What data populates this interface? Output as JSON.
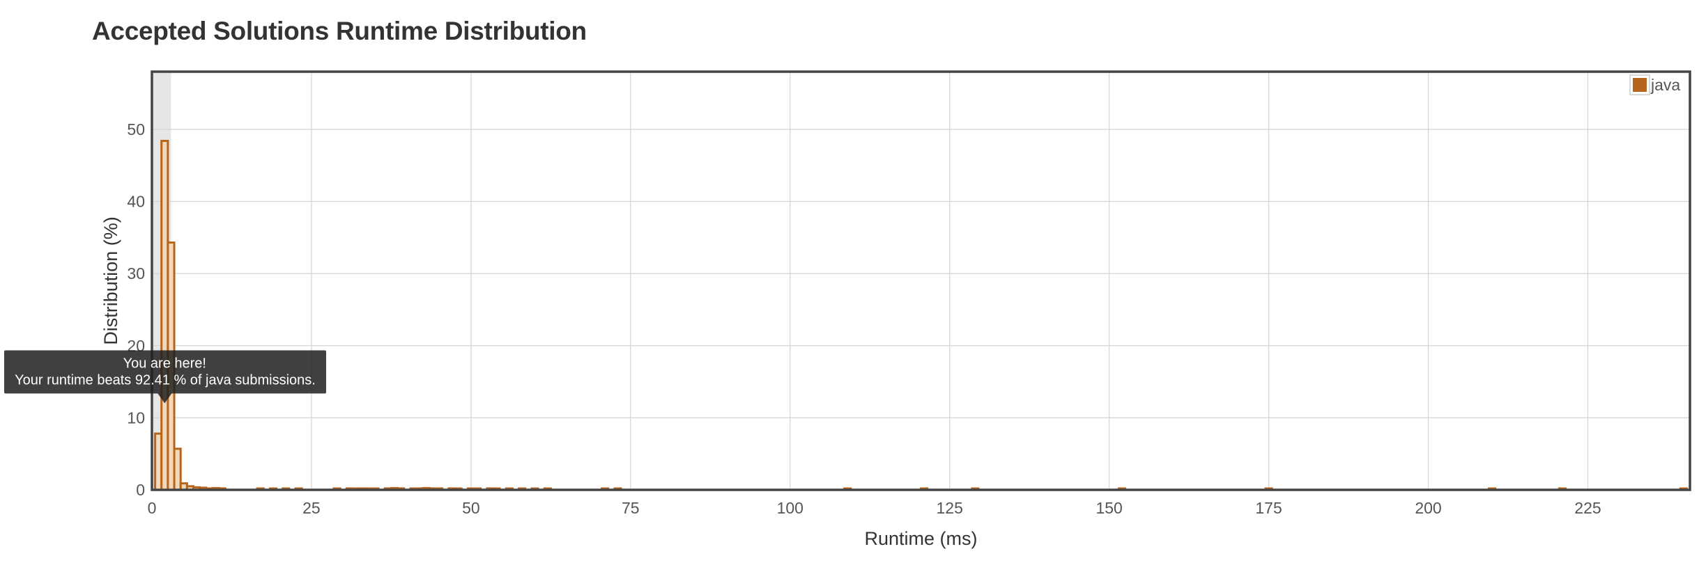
{
  "page": {
    "title": "Accepted Solutions Runtime Distribution"
  },
  "chart_data": {
    "type": "bar",
    "title": "Accepted Solutions Runtime Distribution",
    "xlabel": "Runtime (ms)",
    "ylabel": "Distribution (%)",
    "xlim": [
      0,
      241
    ],
    "ylim": [
      0,
      58
    ],
    "x_ticks": [
      0,
      25,
      50,
      75,
      100,
      125,
      150,
      175,
      200,
      225
    ],
    "y_ticks": [
      0,
      10,
      20,
      30,
      40,
      50
    ],
    "grid": true,
    "legend_position": "top-right",
    "bin_width_ms": 1,
    "series": [
      {
        "name": "java",
        "color": "#b5651d",
        "fill": "#f3d9b8",
        "x": [
          1,
          2,
          3,
          4,
          5,
          6,
          7,
          8,
          9,
          10,
          11,
          17,
          19,
          21,
          23,
          29,
          31,
          32,
          33,
          34,
          35,
          37,
          38,
          39,
          41,
          42,
          43,
          44,
          45,
          47,
          48,
          50,
          51,
          53,
          54,
          56,
          58,
          60,
          62,
          71,
          73,
          109,
          121,
          129,
          152,
          175,
          210,
          221,
          240
        ],
        "values": [
          7.8,
          48.4,
          34.3,
          5.7,
          0.9,
          0.5,
          0.35,
          0.3,
          0.2,
          0.25,
          0.2,
          0.15,
          0.15,
          0.15,
          0.15,
          0.15,
          0.2,
          0.15,
          0.2,
          0.15,
          0.15,
          0.2,
          0.25,
          0.2,
          0.15,
          0.2,
          0.25,
          0.2,
          0.15,
          0.2,
          0.15,
          0.15,
          0.15,
          0.2,
          0.15,
          0.15,
          0.15,
          0.15,
          0.15,
          0.15,
          0.15,
          0.15,
          0.15,
          0.15,
          0.15,
          0.15,
          0.15,
          0.15,
          0.15
        ]
      }
    ],
    "highlight": {
      "x_from": 0,
      "x_to": 3,
      "color": "#e6e6e6"
    },
    "tooltip": {
      "line1": "You are here!",
      "line2": "Your runtime beats 92.41 % of java submissions.",
      "anchor_x": 2,
      "anchor_y": 12.4
    }
  }
}
